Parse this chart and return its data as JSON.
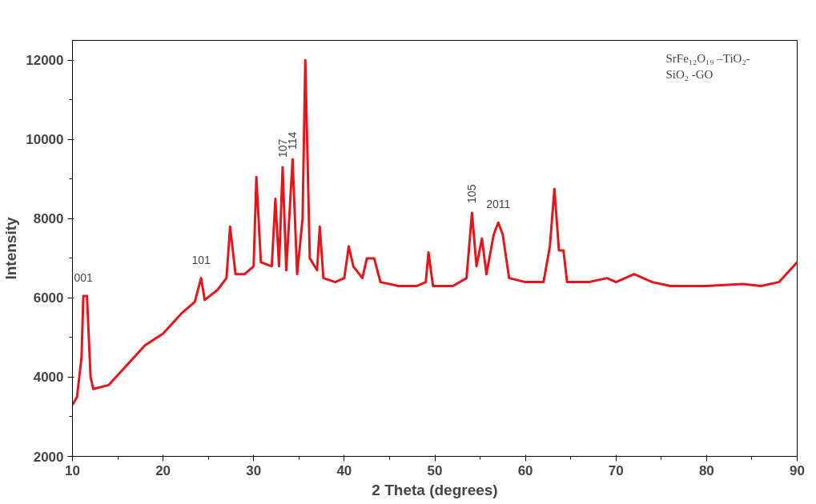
{
  "chart_data": {
    "type": "line",
    "xlabel": "2 Theta (degrees)",
    "ylabel": "Intensity",
    "xlim": [
      10,
      90
    ],
    "ylim": [
      2000,
      12500
    ],
    "xticks": [
      10,
      20,
      30,
      40,
      50,
      60,
      70,
      80,
      90
    ],
    "yticks": [
      2000,
      4000,
      6000,
      8000,
      10000,
      12000
    ],
    "grid": false,
    "series": [
      {
        "color": "#e8141a",
        "x": [
          10.0,
          10.5,
          11.0,
          11.2,
          11.6,
          12.0,
          12.3,
          14,
          16,
          18,
          20,
          22,
          23.5,
          24.2,
          24.6,
          26,
          27,
          27.4,
          28,
          29,
          30,
          30.3,
          30.8,
          32,
          32.4,
          32.8,
          33.2,
          33.6,
          34.3,
          34.8,
          35.4,
          35.7,
          36.2,
          37,
          37.3,
          37.7,
          39,
          40,
          40.5,
          41,
          42,
          42.5,
          43.3,
          44,
          46,
          48,
          49,
          49.3,
          49.8,
          52,
          53.5,
          54.1,
          54.6,
          55.2,
          55.7,
          56.5,
          57,
          57.5,
          58.2,
          60,
          62,
          62.7,
          63.2,
          63.7,
          64.2,
          64.6,
          67,
          69,
          70,
          72,
          74,
          76,
          80,
          84,
          86,
          88,
          90
        ],
        "values": [
          3300,
          3500,
          4500,
          6050,
          6050,
          4000,
          3700,
          3800,
          4300,
          4800,
          5100,
          5600,
          5900,
          6500,
          5950,
          6200,
          6500,
          7800,
          6600,
          6600,
          6800,
          9050,
          6900,
          6800,
          8500,
          6800,
          9300,
          6700,
          9500,
          6600,
          8000,
          12000,
          7000,
          6700,
          7800,
          6500,
          6400,
          6500,
          7300,
          6800,
          6500,
          7000,
          7000,
          6400,
          6300,
          6300,
          6400,
          7150,
          6300,
          6300,
          6500,
          8150,
          6800,
          7500,
          6600,
          7600,
          7900,
          7600,
          6500,
          6400,
          6400,
          7300,
          8750,
          7200,
          7200,
          6400,
          6400,
          6500,
          6400,
          6600,
          6400,
          6300,
          6300,
          6350,
          6300,
          6400,
          6900
        ]
      }
    ],
    "annotations": [
      {
        "text": "001",
        "x": 11.2,
        "y": 6050
      },
      {
        "text": "101",
        "x": 24.2,
        "y": 6500
      },
      {
        "text": "107",
        "x": 33.2,
        "y": 9300
      },
      {
        "text": "114",
        "x": 34.3,
        "y": 9500
      },
      {
        "text": "105",
        "x": 54.1,
        "y": 8150
      },
      {
        "text": "2011",
        "x": 57,
        "y": 7900
      },
      "SrFe₁₂O₁₉ –TiO₂-\nSiO₂  -GO"
    ]
  }
}
